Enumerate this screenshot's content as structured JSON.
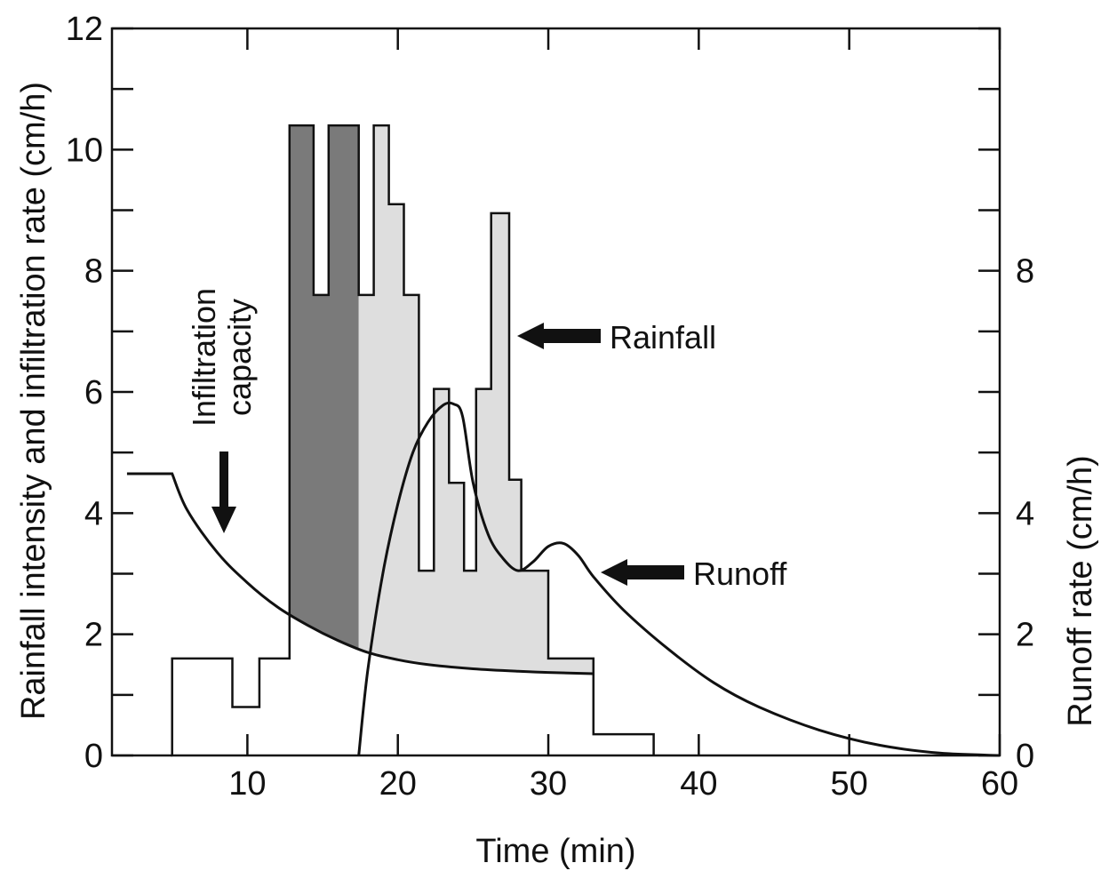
{
  "chart_data": {
    "type": "line",
    "xlabel": "Time (min)",
    "ylabel": "Rainfall intensity and infiltration rate (cm/h)",
    "y2label": "Runoff rate (cm/h)",
    "xlim": [
      1,
      60
    ],
    "ylim": [
      0,
      12
    ],
    "x_ticks": [
      10,
      20,
      30,
      40,
      50,
      60
    ],
    "y_ticks": [
      0,
      2,
      4,
      6,
      8,
      10,
      12
    ],
    "y_minor_ticks": [
      1,
      3,
      5,
      7,
      9,
      11
    ],
    "y2_ticks": [
      {
        "value": 0,
        "label": "0"
      },
      {
        "value": 2,
        "label": "2"
      },
      {
        "value": 4,
        "label": "4"
      },
      {
        "value": 8,
        "label": "8"
      }
    ],
    "colors": {
      "dark_fill": "#7a7a7a",
      "light_fill": "#dedede",
      "line": "#111111"
    },
    "series": [
      {
        "name": "Rainfall",
        "kind": "step",
        "x": [
          5,
          9,
          10.8,
          12.8,
          14.4,
          15.4,
          17.4,
          18.4,
          19.4,
          20.4,
          21.4,
          22.4,
          23.4,
          24.4,
          25.2,
          26.2,
          27.4,
          28.2,
          30,
          33,
          37
        ],
        "y": [
          1.6,
          0.8,
          1.6,
          10.4,
          7.6,
          10.4,
          7.6,
          10.4,
          9.1,
          7.6,
          3.05,
          6.05,
          4.5,
          3.05,
          6.05,
          8.95,
          4.55,
          3.05,
          1.6,
          0.35,
          0
        ]
      },
      {
        "name": "Infiltration capacity",
        "x": [
          2,
          5,
          6,
          8,
          10,
          12,
          14,
          16,
          18,
          20,
          22,
          25,
          28,
          30,
          33
        ],
        "y": [
          4.65,
          4.65,
          4.05,
          3.35,
          2.85,
          2.45,
          2.15,
          1.9,
          1.7,
          1.58,
          1.5,
          1.43,
          1.39,
          1.37,
          1.35
        ]
      },
      {
        "name": "Runoff",
        "x": [
          17.4,
          18,
          19,
          20,
          21,
          22,
          23,
          23.7,
          24.3,
          25,
          26,
          27,
          28,
          29,
          30,
          31,
          32,
          33,
          35,
          38,
          41,
          44,
          48,
          52,
          56,
          60
        ],
        "y": [
          0,
          1.4,
          3.0,
          4.15,
          5.0,
          5.5,
          5.78,
          5.8,
          5.6,
          4.5,
          3.65,
          3.25,
          3.05,
          3.2,
          3.45,
          3.5,
          3.3,
          2.95,
          2.4,
          1.75,
          1.2,
          0.8,
          0.42,
          0.17,
          0.04,
          0
        ]
      }
    ],
    "annotations": {
      "rainfall": "Rainfall",
      "runoff": "Runoff",
      "infiltration_line1": "Infiltration",
      "infiltration_line2": "capacity"
    }
  }
}
